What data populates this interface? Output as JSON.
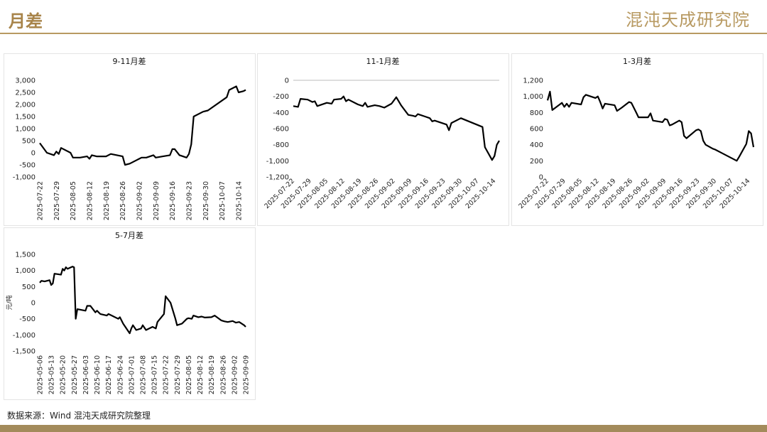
{
  "header": {
    "title": "月差",
    "logo": "混沌天成研究院"
  },
  "chart_data": [
    {
      "type": "line",
      "title": "9-11月差",
      "color": "#000000",
      "x": [
        "2025-07-22",
        "2025-07-25",
        "2025-07-28",
        "2025-07-29",
        "2025-07-30",
        "2025-07-31",
        "2025-08-04",
        "2025-08-05",
        "2025-08-08",
        "2025-08-11",
        "2025-08-12",
        "2025-08-13",
        "2025-08-15",
        "2025-08-19",
        "2025-08-21",
        "2025-08-26",
        "2025-08-27",
        "2025-08-29",
        "2025-09-01",
        "2025-09-02",
        "2025-09-03",
        "2025-09-05",
        "2025-09-08",
        "2025-09-09",
        "2025-09-12",
        "2025-09-15",
        "2025-09-16",
        "2025-09-17",
        "2025-09-19",
        "2025-09-22",
        "2025-09-23",
        "2025-09-24",
        "2025-09-25",
        "2025-09-29",
        "2025-10-01",
        "2025-10-09",
        "2025-10-10",
        "2025-10-13",
        "2025-10-14",
        "2025-10-16",
        "2025-10-17"
      ],
      "values": [
        400,
        0,
        -100,
        50,
        -50,
        200,
        0,
        -200,
        -200,
        -150,
        -250,
        -100,
        -150,
        -150,
        -50,
        -150,
        -500,
        -450,
        -300,
        -250,
        -200,
        -200,
        -100,
        -200,
        -150,
        -100,
        150,
        150,
        -100,
        -200,
        -50,
        350,
        1500,
        1700,
        1750,
        2300,
        2600,
        2750,
        2500,
        2550,
        2600
      ],
      "xlim": [
        "2025-07-22",
        "2025-10-17"
      ],
      "xticks": [
        "2025-07-22",
        "2025-07-29",
        "2025-08-05",
        "2025-08-12",
        "2025-08-19",
        "2025-08-26",
        "2025-09-02",
        "2025-09-09",
        "2025-09-16",
        "2025-09-23",
        "2025-09-30",
        "2025-10-07",
        "2025-10-14"
      ],
      "ylim": [
        -1000,
        3000
      ],
      "yticks": [
        {
          "value": -1000,
          "label": "-1,000"
        },
        -500,
        0,
        500,
        {
          "value": 1000,
          "label": "1,000"
        },
        {
          "value": 1500,
          "label": "1,500"
        },
        {
          "value": 2000,
          "label": "2,000"
        },
        {
          "value": 2500,
          "label": "2,500"
        },
        {
          "value": 3000,
          "label": "3,000"
        }
      ]
    },
    {
      "type": "line",
      "title": "11-1月差",
      "color": "#000000",
      "x": [
        "2025-07-22",
        "2025-07-24",
        "2025-07-25",
        "2025-07-28",
        "2025-07-30",
        "2025-07-31",
        "2025-08-01",
        "2025-08-05",
        "2025-08-07",
        "2025-08-08",
        "2025-08-11",
        "2025-08-12",
        "2025-08-13",
        "2025-08-14",
        "2025-08-18",
        "2025-08-20",
        "2025-08-21",
        "2025-08-22",
        "2025-08-25",
        "2025-08-27",
        "2025-08-29",
        "2025-09-01",
        "2025-09-03",
        "2025-09-05",
        "2025-09-08",
        "2025-09-10",
        "2025-09-11",
        "2025-09-12",
        "2025-09-15",
        "2025-09-17",
        "2025-09-18",
        "2025-09-19",
        "2025-09-22",
        "2025-09-24",
        "2025-09-25",
        "2025-09-26",
        "2025-09-30",
        "2025-10-09",
        "2025-10-10",
        "2025-10-13",
        "2025-10-14",
        "2025-10-15",
        "2025-10-16"
      ],
      "values": [
        -320,
        -330,
        -230,
        -240,
        -270,
        -260,
        -320,
        -280,
        -290,
        -240,
        -230,
        -200,
        -260,
        -240,
        -300,
        -320,
        -280,
        -330,
        -310,
        -320,
        -340,
        -290,
        -210,
        -310,
        -430,
        -440,
        -450,
        -420,
        -450,
        -470,
        -510,
        -500,
        -530,
        -550,
        -620,
        -530,
        -470,
        -580,
        -830,
        -990,
        -940,
        -800,
        -750
      ],
      "xlim": [
        "2025-07-22",
        "2025-10-16"
      ],
      "xticks": [
        "2025-07-22",
        "2025-07-29",
        "2025-08-05",
        "2025-08-12",
        "2025-08-19",
        "2025-08-26",
        "2025-09-02",
        "2025-09-09",
        "2025-09-16",
        "2025-09-23",
        "2025-09-30",
        "2025-10-07",
        "2025-10-14"
      ],
      "ylim": [
        -1200,
        0
      ],
      "yticks": [
        {
          "value": -1200,
          "label": "-1,200"
        },
        {
          "value": -1000,
          "label": "-1,000"
        },
        -800,
        -600,
        -400,
        -200,
        0
      ]
    },
    {
      "type": "line",
      "title": "1-3月差",
      "color": "#000000",
      "x": [
        "2025-07-22",
        "2025-07-23",
        "2025-07-24",
        "2025-07-28",
        "2025-07-29",
        "2025-07-30",
        "2025-07-31",
        "2025-08-01",
        "2025-08-05",
        "2025-08-06",
        "2025-08-07",
        "2025-08-11",
        "2025-08-12",
        "2025-08-13",
        "2025-08-14",
        "2025-08-15",
        "2025-08-19",
        "2025-08-20",
        "2025-08-22",
        "2025-08-25",
        "2025-08-26",
        "2025-08-28",
        "2025-08-29",
        "2025-09-02",
        "2025-09-03",
        "2025-09-04",
        "2025-09-08",
        "2025-09-09",
        "2025-09-10",
        "2025-09-11",
        "2025-09-12",
        "2025-09-15",
        "2025-09-16",
        "2025-09-17",
        "2025-09-18",
        "2025-09-22",
        "2025-09-23",
        "2025-09-24",
        "2025-09-25",
        "2025-09-26",
        "2025-09-29",
        "2025-09-30",
        "2025-10-09",
        "2025-10-10",
        "2025-10-13",
        "2025-10-14",
        "2025-10-15",
        "2025-10-16"
      ],
      "values": [
        950,
        1060,
        830,
        920,
        870,
        910,
        870,
        920,
        900,
        990,
        1020,
        980,
        1000,
        930,
        850,
        910,
        890,
        820,
        860,
        930,
        920,
        800,
        740,
        740,
        790,
        700,
        680,
        720,
        710,
        640,
        650,
        700,
        680,
        510,
        480,
        580,
        590,
        570,
        450,
        400,
        350,
        340,
        200,
        250,
        410,
        570,
        540,
        370
      ],
      "xlim": [
        "2025-07-22",
        "2025-10-16"
      ],
      "xticks": [
        "2025-07-22",
        "2025-07-29",
        "2025-08-05",
        "2025-08-12",
        "2025-08-19",
        "2025-08-26",
        "2025-09-02",
        "2025-09-09",
        "2025-09-16",
        "2025-09-23",
        "2025-09-30",
        "2025-10-07",
        "2025-10-14"
      ],
      "ylim": [
        0,
        1200
      ],
      "yticks": [
        0,
        200,
        400,
        600,
        800,
        {
          "value": 1000,
          "label": "1,000"
        },
        {
          "value": 1200,
          "label": "1,200"
        }
      ]
    },
    {
      "type": "line",
      "title": "5-7月差",
      "ylabel": "元/吨",
      "color": "#000000",
      "x": [
        "2025-05-06",
        "2025-05-07",
        "2025-05-09",
        "2025-05-12",
        "2025-05-13",
        "2025-05-14",
        "2025-05-15",
        "2025-05-19",
        "2025-05-20",
        "2025-05-21",
        "2025-05-22",
        "2025-05-23",
        "2025-05-26",
        "2025-05-27",
        "2025-05-28",
        "2025-05-29",
        "2025-06-03",
        "2025-06-04",
        "2025-06-06",
        "2025-06-09",
        "2025-06-10",
        "2025-06-12",
        "2025-06-16",
        "2025-06-17",
        "2025-06-19",
        "2025-06-23",
        "2025-06-24",
        "2025-06-26",
        "2025-06-30",
        "2025-07-01",
        "2025-07-02",
        "2025-07-04",
        "2025-07-07",
        "2025-07-08",
        "2025-07-10",
        "2025-07-14",
        "2025-07-16",
        "2025-07-17",
        "2025-07-21",
        "2025-07-22",
        "2025-07-25",
        "2025-07-28",
        "2025-07-29",
        "2025-08-01",
        "2025-08-04",
        "2025-08-05",
        "2025-08-07",
        "2025-08-08",
        "2025-08-11",
        "2025-08-13",
        "2025-08-15",
        "2025-08-19",
        "2025-08-21",
        "2025-08-25",
        "2025-08-27",
        "2025-08-29",
        "2025-09-01",
        "2025-09-03",
        "2025-09-05",
        "2025-09-08",
        "2025-09-09"
      ],
      "values": [
        620,
        680,
        660,
        700,
        550,
        600,
        900,
        870,
        1050,
        1000,
        1100,
        1050,
        1120,
        1100,
        -500,
        -200,
        -250,
        -100,
        -100,
        -300,
        -250,
        -350,
        -400,
        -350,
        -400,
        -500,
        -450,
        -650,
        -950,
        -800,
        -700,
        -850,
        -800,
        -700,
        -850,
        -750,
        -800,
        -600,
        -350,
        200,
        0,
        -500,
        -700,
        -650,
        -500,
        -480,
        -500,
        -400,
        -450,
        -430,
        -460,
        -450,
        -400,
        -550,
        -580,
        -600,
        -570,
        -620,
        -600,
        -700,
        -750
      ],
      "xlim": [
        "2025-05-06",
        "2025-09-09"
      ],
      "xticks": [
        "2025-05-06",
        "2025-05-13",
        "2025-05-20",
        "2025-05-27",
        "2025-06-03",
        "2025-06-10",
        "2025-06-17",
        "2025-06-24",
        "2025-07-01",
        "2025-07-08",
        "2025-07-15",
        "2025-07-22",
        "2025-07-29",
        "2025-08-05",
        "2025-08-12",
        "2025-08-19",
        "2025-08-26",
        "2025-09-02",
        "2025-09-09"
      ],
      "ylim": [
        -1500,
        1500
      ],
      "yticks": [
        {
          "value": -1500,
          "label": "-1,500"
        },
        {
          "value": -1000,
          "label": "-1,000"
        },
        -500,
        0,
        500,
        {
          "value": 1000,
          "label": "1,000"
        },
        {
          "value": 1500,
          "label": "1,500"
        }
      ]
    }
  ],
  "source": "数据来源：Wind 混沌天成研究院整理"
}
